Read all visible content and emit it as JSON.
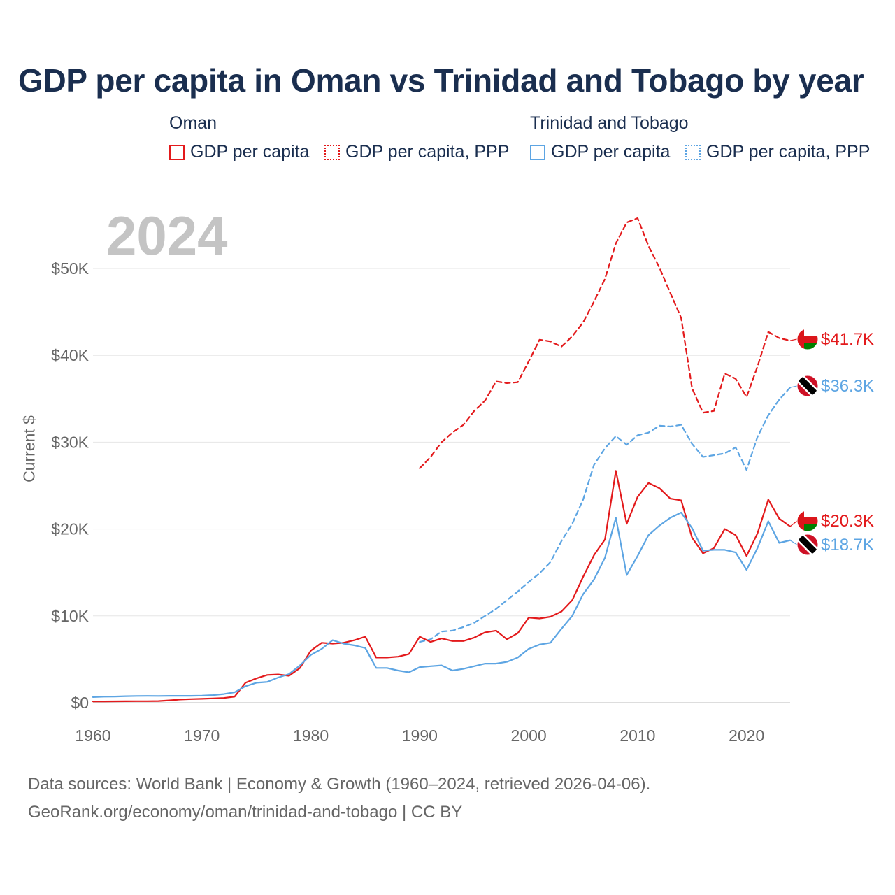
{
  "title": "GDP per capita in Oman vs Trinidad and Tobago by year",
  "legend": {
    "groups": [
      {
        "country": "Oman",
        "color": "#e31a1c",
        "items": [
          {
            "label": "GDP per capita",
            "style": "solid"
          },
          {
            "label": "GDP per capita, PPP",
            "style": "dotted"
          }
        ]
      },
      {
        "country": "Trinidad and Tobago",
        "color": "#5da5e3",
        "items": [
          {
            "label": "GDP per capita",
            "style": "solid"
          },
          {
            "label": "GDP per capita, PPP",
            "style": "dotted"
          }
        ]
      }
    ]
  },
  "year_label": "2024",
  "source": {
    "line1": "Data sources: World Bank | Economy & Growth (1960–2024, retrieved 2026-04-06).",
    "line2": "GeoRank.org/economy/oman/trinidad-and-tobago | CC BY"
  },
  "chart_data": {
    "type": "line",
    "title": "GDP per capita in Oman vs Trinidad and Tobago by year",
    "xlabel": "",
    "ylabel": "Current $",
    "xlim": [
      1960,
      2024
    ],
    "ylim": [
      0,
      55000
    ],
    "x_ticks": [
      {
        "value": 1960,
        "label": "1960"
      },
      {
        "value": 1970,
        "label": "1970"
      },
      {
        "value": 1980,
        "label": "1980"
      },
      {
        "value": 1990,
        "label": "1990"
      },
      {
        "value": 2000,
        "label": "2000"
      },
      {
        "value": 2010,
        "label": "2010"
      },
      {
        "value": 2020,
        "label": "2020"
      }
    ],
    "y_ticks": [
      {
        "value": 0,
        "label": "$0"
      },
      {
        "value": 10000,
        "label": "$10K"
      },
      {
        "value": 20000,
        "label": "$20K"
      },
      {
        "value": 30000,
        "label": "$30K"
      },
      {
        "value": 40000,
        "label": "$40K"
      },
      {
        "value": 50000,
        "label": "$50K"
      }
    ],
    "grid": true,
    "series": [
      {
        "name": "Oman GDP per capita, PPP",
        "country": "Oman",
        "color": "#e31a1c",
        "dash": "dashed",
        "flag": "oman-flag",
        "end_label": "$41.7K",
        "start": 1990,
        "values": [
          27000,
          28300,
          30000,
          31100,
          32000,
          33600,
          34800,
          37000,
          36800,
          36900,
          39300,
          41800,
          41600,
          41000,
          42200,
          43800,
          46200,
          48800,
          52900,
          55300,
          55800,
          52600,
          50100,
          47200,
          44300,
          36200,
          33400,
          33600,
          37900,
          37300,
          35200,
          38700,
          42700,
          42000,
          41700
        ]
      },
      {
        "name": "Trinidad and Tobago GDP per capita, PPP",
        "country": "Trinidad and Tobago",
        "color": "#5da5e3",
        "dash": "dashed",
        "flag": "trinidad-flag",
        "end_label": "$36.3K",
        "start": 1990,
        "values": [
          7000,
          7300,
          8200,
          8300,
          8700,
          9200,
          10000,
          10800,
          11800,
          12800,
          13900,
          14900,
          16200,
          18600,
          20600,
          23400,
          27400,
          29300,
          30700,
          29700,
          30800,
          31100,
          31900,
          31800,
          32000,
          29800,
          28300,
          28500,
          28700,
          29400,
          26800,
          30600,
          33100,
          34900,
          36300
        ]
      },
      {
        "name": "Oman GDP per capita",
        "country": "Oman",
        "color": "#e31a1c",
        "dash": "solid",
        "flag": "oman-flag",
        "end_label": "$20.3K",
        "start": 1960,
        "values": [
          150,
          150,
          160,
          170,
          180,
          180,
          190,
          270,
          370,
          420,
          450,
          500,
          550,
          700,
          2300,
          2800,
          3200,
          3250,
          3100,
          4000,
          6000,
          6900,
          6800,
          6900,
          7200,
          7600,
          5200,
          5200,
          5300,
          5600,
          7600,
          7000,
          7400,
          7100,
          7100,
          7500,
          8100,
          8300,
          7300,
          8000,
          9800,
          9700,
          9900,
          10500,
          11800,
          14500,
          17000,
          18800,
          26700,
          20600,
          23700,
          25300,
          24700,
          23500,
          23300,
          19000,
          17200,
          17800,
          20000,
          19300,
          16900,
          19500,
          23400,
          21200,
          20300
        ]
      },
      {
        "name": "Trinidad and Tobago GDP per capita",
        "country": "Trinidad and Tobago",
        "color": "#5da5e3",
        "dash": "solid",
        "flag": "trinidad-flag",
        "end_label": "$18.7K",
        "start": 1960,
        "values": [
          650,
          700,
          720,
          760,
          780,
          790,
          780,
          800,
          800,
          800,
          820,
          880,
          1000,
          1200,
          1900,
          2300,
          2400,
          2900,
          3300,
          4300,
          5500,
          6200,
          7200,
          6800,
          6600,
          6300,
          4000,
          4000,
          3700,
          3500,
          4100,
          4200,
          4300,
          3700,
          3900,
          4200,
          4500,
          4500,
          4700,
          5200,
          6200,
          6700,
          6900,
          8500,
          10000,
          12500,
          14200,
          16700,
          21300,
          14700,
          16900,
          19300,
          20400,
          21300,
          21900,
          20100,
          17500,
          17600,
          17600,
          17300,
          15300,
          17800,
          20900,
          18400,
          18700
        ]
      }
    ]
  }
}
